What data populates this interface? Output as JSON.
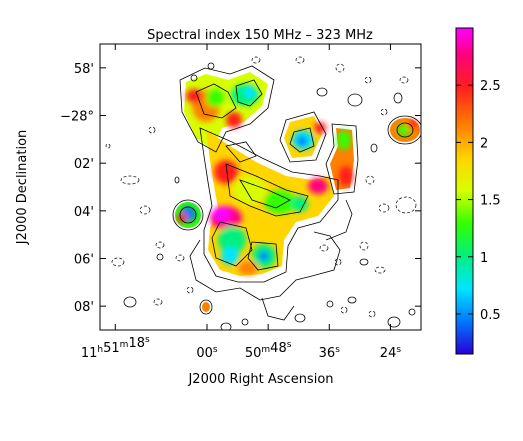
{
  "chart_data": {
    "type": "heatmap",
    "title": "Spectral index 150 MHz – 323 MHz",
    "xlabel": "J2000 Right Ascension",
    "ylabel": "J2000 Declination",
    "x_ticks": [
      {
        "label": "11h51m18s",
        "ra_sec_offset": 18
      },
      {
        "label": "00s",
        "ra_sec_offset": 0
      },
      {
        "label": "50m48s",
        "ra_sec_offset": -12
      },
      {
        "label": "36s",
        "ra_sec_offset": -24
      },
      {
        "label": "24s",
        "ra_sec_offset": -36
      }
    ],
    "y_ticks": [
      {
        "label": "58'",
        "dec_arcmin": -2
      },
      {
        "label": "−28°",
        "dec_arcmin": 0
      },
      {
        "label": "02'",
        "dec_arcmin": 2
      },
      {
        "label": "04'",
        "dec_arcmin": 4
      },
      {
        "label": "06'",
        "dec_arcmin": 6
      },
      {
        "label": "08'",
        "dec_arcmin": 8
      }
    ],
    "xlim_ra_sec_offset": [
      21,
      -42
    ],
    "ylim_dec_arcmin": [
      -3,
      9
    ],
    "colorbar": {
      "range": [
        0.15,
        3.0
      ],
      "ticks": [
        "0.5",
        "1",
        "1.5",
        "2",
        "2.5"
      ],
      "tick_values": [
        0.5,
        1,
        1.5,
        2,
        2.5
      ],
      "colors": [
        "#2a00d5",
        "#0077ff",
        "#00e5ff",
        "#00f080",
        "#33ff00",
        "#d8ff00",
        "#ffd500",
        "#ff8000",
        "#ff1e1e",
        "#ff0080",
        "#ff00ff"
      ]
    },
    "regions": [
      {
        "ra": 1.5,
        "dec": -1.5,
        "index": 1.1
      },
      {
        "ra": -5,
        "dec": -2.0,
        "index": 0.9
      },
      {
        "ra": -27,
        "dec": 0.1,
        "index": 0.5
      },
      {
        "ra": -33,
        "dec": 0.6,
        "index": 1.2
      },
      {
        "ra": -39.8,
        "dec": 0.0,
        "index": 1.3
      },
      {
        "ra": -7,
        "dec": 2.8,
        "index": 1.5
      },
      {
        "ra": 4,
        "dec": 4.0,
        "index": 0.4
      },
      {
        "ra": -3,
        "dec": 4.8,
        "index": 1.0
      },
      {
        "ra": -1,
        "dec": 6.0,
        "index": 0.9
      },
      {
        "ra": -11,
        "dec": 5.8,
        "index": 0.7
      },
      {
        "ra": -21,
        "dec": 2.8,
        "index": 1.8
      }
    ],
    "grid": false,
    "legend": "colorbar-right"
  }
}
